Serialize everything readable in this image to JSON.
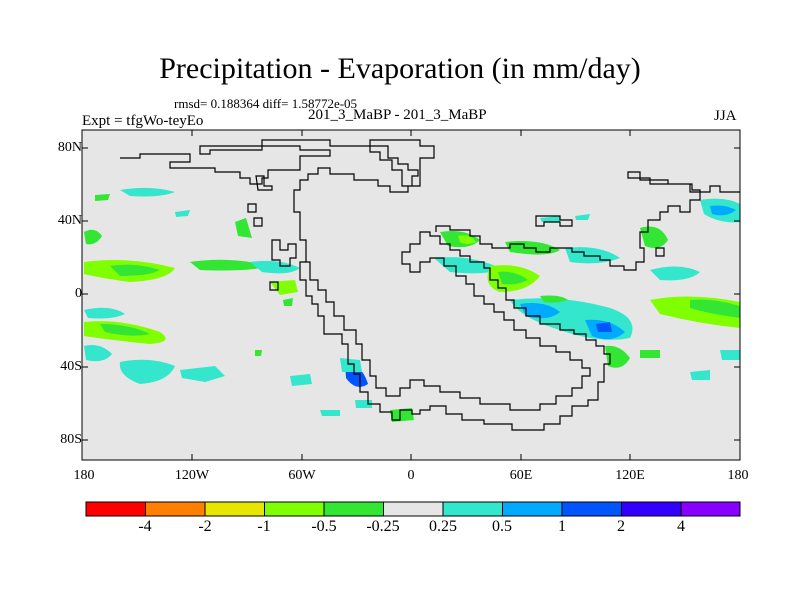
{
  "map": {
    "title": "Precipitation - Evaporation (in mm/day)",
    "stats": "rmsd= 0.188364 diff= 1.58772e-05",
    "experiment": "Expt = tfgWo-teyEo",
    "comparison": "201_3_MaBP - 201_3_MaBP",
    "season": "JJA",
    "lat_labels": [
      "80N",
      "40N",
      "0",
      "40S",
      "80S"
    ],
    "lon_labels": [
      "180",
      "120W",
      "60W",
      "0",
      "60E",
      "120E",
      "180"
    ]
  },
  "colorbar": {
    "labels": [
      "-4",
      "-2",
      "-1",
      "-0.5",
      "-0.25",
      "0.25",
      "0.5",
      "1",
      "2",
      "4"
    ],
    "colors": [
      "#ff0000",
      "#ff8000",
      "#e6e600",
      "#80ff00",
      "#33e633",
      "#e6e6e6",
      "#33e6cc",
      "#00aaff",
      "#0055ff",
      "#3300ff",
      "#8800ff"
    ]
  },
  "colors": {
    "background": "#e6e6e6",
    "coastline": "#000000",
    "light_green": "#80ff00",
    "green": "#33e633",
    "cyan": "#33e6cc",
    "light_blue": "#00aaff",
    "blue": "#0055ff"
  }
}
